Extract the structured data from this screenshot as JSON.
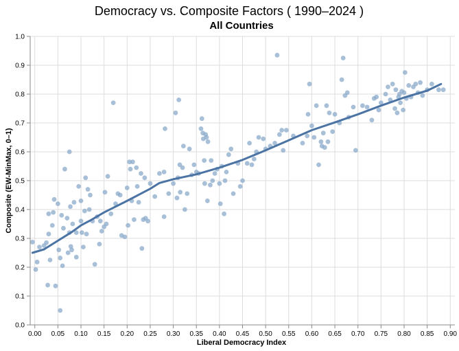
{
  "chart_data": {
    "type": "scatter",
    "title": "Democracy vs. Composite Factors ( 1990–2024 )",
    "subtitle": "All Countries",
    "xlabel": "Liberal Democracy Index",
    "ylabel": "Composite (EW-MinMax, 0–1)",
    "xlim": [
      -0.01,
      0.91
    ],
    "ylim": [
      0,
      1
    ],
    "x_ticks": [
      "0.00",
      "0.05",
      "0.10",
      "0.15",
      "0.20",
      "0.25",
      "0.30",
      "0.35",
      "0.40",
      "0.45",
      "0.50",
      "0.55",
      "0.60",
      "0.65",
      "0.70",
      "0.75",
      "0.80",
      "0.85",
      "0.90"
    ],
    "y_ticks": [
      "0.0",
      "0.1",
      "0.2",
      "0.3",
      "0.4",
      "0.5",
      "0.6",
      "0.7",
      "0.8",
      "0.9",
      "1.0"
    ],
    "grid": true,
    "colors": {
      "points": "#8ba9cb",
      "trend": "#4b73a3",
      "grid": "#dddddd",
      "axis": "#888888"
    },
    "points": [
      [
        -0.005,
        0.287
      ],
      [
        0.002,
        0.192
      ],
      [
        0.005,
        0.218
      ],
      [
        0.01,
        0.27
      ],
      [
        0.02,
        0.275
      ],
      [
        0.025,
        0.285
      ],
      [
        0.028,
        0.138
      ],
      [
        0.03,
        0.315
      ],
      [
        0.03,
        0.385
      ],
      [
        0.033,
        0.225
      ],
      [
        0.038,
        0.345
      ],
      [
        0.04,
        0.39
      ],
      [
        0.042,
        0.435
      ],
      [
        0.045,
        0.135
      ],
      [
        0.05,
        0.42
      ],
      [
        0.052,
        0.26
      ],
      [
        0.055,
        0.05
      ],
      [
        0.055,
        0.232
      ],
      [
        0.058,
        0.38
      ],
      [
        0.06,
        0.205
      ],
      [
        0.062,
        0.335
      ],
      [
        0.065,
        0.54
      ],
      [
        0.07,
        0.37
      ],
      [
        0.072,
        0.25
      ],
      [
        0.075,
        0.32
      ],
      [
        0.075,
        0.6
      ],
      [
        0.077,
        0.41
      ],
      [
        0.078,
        0.272
      ],
      [
        0.08,
        0.26
      ],
      [
        0.082,
        0.35
      ],
      [
        0.085,
        0.425
      ],
      [
        0.09,
        0.235
      ],
      [
        0.09,
        0.32
      ],
      [
        0.095,
        0.48
      ],
      [
        0.1,
        0.43
      ],
      [
        0.1,
        0.36
      ],
      [
        0.102,
        0.32
      ],
      [
        0.105,
        0.27
      ],
      [
        0.108,
        0.395
      ],
      [
        0.11,
        0.51
      ],
      [
        0.112,
        0.315
      ],
      [
        0.115,
        0.47
      ],
      [
        0.118,
        0.4
      ],
      [
        0.12,
        0.45
      ],
      [
        0.125,
        0.36
      ],
      [
        0.13,
        0.21
      ],
      [
        0.135,
        0.375
      ],
      [
        0.14,
        0.28
      ],
      [
        0.142,
        0.36
      ],
      [
        0.145,
        0.325
      ],
      [
        0.15,
        0.34
      ],
      [
        0.152,
        0.46
      ],
      [
        0.155,
        0.35
      ],
      [
        0.158,
        0.515
      ],
      [
        0.165,
        0.385
      ],
      [
        0.17,
        0.77
      ],
      [
        0.175,
        0.42
      ],
      [
        0.18,
        0.455
      ],
      [
        0.185,
        0.45
      ],
      [
        0.188,
        0.31
      ],
      [
        0.195,
        0.305
      ],
      [
        0.2,
        0.475
      ],
      [
        0.202,
        0.345
      ],
      [
        0.205,
        0.565
      ],
      [
        0.207,
        0.54
      ],
      [
        0.21,
        0.43
      ],
      [
        0.212,
        0.565
      ],
      [
        0.215,
        0.365
      ],
      [
        0.22,
        0.545
      ],
      [
        0.222,
        0.48
      ],
      [
        0.225,
        0.425
      ],
      [
        0.23,
        0.525
      ],
      [
        0.232,
        0.265
      ],
      [
        0.235,
        0.365
      ],
      [
        0.238,
        0.51
      ],
      [
        0.24,
        0.37
      ],
      [
        0.245,
        0.36
      ],
      [
        0.25,
        0.49
      ],
      [
        0.26,
        0.445
      ],
      [
        0.27,
        0.525
      ],
      [
        0.28,
        0.53
      ],
      [
        0.28,
        0.375
      ],
      [
        0.282,
        0.68
      ],
      [
        0.29,
        0.455
      ],
      [
        0.3,
        0.49
      ],
      [
        0.305,
        0.735
      ],
      [
        0.308,
        0.44
      ],
      [
        0.31,
        0.51
      ],
      [
        0.312,
        0.78
      ],
      [
        0.314,
        0.555
      ],
      [
        0.315,
        0.46
      ],
      [
        0.32,
        0.545
      ],
      [
        0.322,
        0.62
      ],
      [
        0.325,
        0.4
      ],
      [
        0.33,
        0.455
      ],
      [
        0.335,
        0.61
      ],
      [
        0.34,
        0.52
      ],
      [
        0.345,
        0.555
      ],
      [
        0.35,
        0.53
      ],
      [
        0.355,
        0.525
      ],
      [
        0.36,
        0.68
      ],
      [
        0.362,
        0.715
      ],
      [
        0.364,
        0.665
      ],
      [
        0.365,
        0.645
      ],
      [
        0.367,
        0.57
      ],
      [
        0.368,
        0.49
      ],
      [
        0.37,
        0.66
      ],
      [
        0.372,
        0.65
      ],
      [
        0.374,
        0.43
      ],
      [
        0.375,
        0.635
      ],
      [
        0.38,
        0.485
      ],
      [
        0.382,
        0.57
      ],
      [
        0.385,
        0.5
      ],
      [
        0.39,
        0.525
      ],
      [
        0.395,
        0.54
      ],
      [
        0.4,
        0.49
      ],
      [
        0.402,
        0.42
      ],
      [
        0.405,
        0.55
      ],
      [
        0.41,
        0.385
      ],
      [
        0.412,
        0.5
      ],
      [
        0.415,
        0.53
      ],
      [
        0.42,
        0.59
      ],
      [
        0.425,
        0.61
      ],
      [
        0.43,
        0.455
      ],
      [
        0.44,
        0.56
      ],
      [
        0.445,
        0.48
      ],
      [
        0.45,
        0.5
      ],
      [
        0.46,
        0.56
      ],
      [
        0.465,
        0.63
      ],
      [
        0.47,
        0.555
      ],
      [
        0.475,
        0.575
      ],
      [
        0.48,
        0.6
      ],
      [
        0.485,
        0.65
      ],
      [
        0.495,
        0.645
      ],
      [
        0.5,
        0.61
      ],
      [
        0.51,
        0.62
      ],
      [
        0.52,
        0.63
      ],
      [
        0.525,
        0.935
      ],
      [
        0.53,
        0.66
      ],
      [
        0.535,
        0.675
      ],
      [
        0.538,
        0.605
      ],
      [
        0.545,
        0.675
      ],
      [
        0.56,
        0.655
      ],
      [
        0.58,
        0.63
      ],
      [
        0.59,
        0.655
      ],
      [
        0.592,
        0.73
      ],
      [
        0.595,
        0.835
      ],
      [
        0.6,
        0.69
      ],
      [
        0.605,
        0.65
      ],
      [
        0.61,
        0.76
      ],
      [
        0.615,
        0.555
      ],
      [
        0.62,
        0.635
      ],
      [
        0.622,
        0.62
      ],
      [
        0.625,
        0.665
      ],
      [
        0.628,
        0.615
      ],
      [
        0.632,
        0.76
      ],
      [
        0.635,
        0.635
      ],
      [
        0.638,
        0.735
      ],
      [
        0.645,
        0.67
      ],
      [
        0.65,
        0.73
      ],
      [
        0.66,
        0.7
      ],
      [
        0.665,
        0.85
      ],
      [
        0.668,
        0.925
      ],
      [
        0.672,
        0.795
      ],
      [
        0.677,
        0.805
      ],
      [
        0.68,
        0.72
      ],
      [
        0.69,
        0.755
      ],
      [
        0.695,
        0.605
      ],
      [
        0.71,
        0.76
      ],
      [
        0.72,
        0.755
      ],
      [
        0.73,
        0.71
      ],
      [
        0.735,
        0.785
      ],
      [
        0.74,
        0.79
      ],
      [
        0.745,
        0.745
      ],
      [
        0.75,
        0.77
      ],
      [
        0.76,
        0.8
      ],
      [
        0.765,
        0.825
      ],
      [
        0.77,
        0.78
      ],
      [
        0.775,
        0.835
      ],
      [
        0.78,
        0.75
      ],
      [
        0.782,
        0.815
      ],
      [
        0.785,
        0.735
      ],
      [
        0.788,
        0.79
      ],
      [
        0.79,
        0.8
      ],
      [
        0.792,
        0.77
      ],
      [
        0.795,
        0.81
      ],
      [
        0.798,
        0.745
      ],
      [
        0.8,
        0.805
      ],
      [
        0.802,
        0.875
      ],
      [
        0.805,
        0.785
      ],
      [
        0.81,
        0.83
      ],
      [
        0.815,
        0.79
      ],
      [
        0.82,
        0.825
      ],
      [
        0.825,
        0.835
      ],
      [
        0.83,
        0.805
      ],
      [
        0.835,
        0.84
      ],
      [
        0.84,
        0.795
      ],
      [
        0.85,
        0.815
      ],
      [
        0.86,
        0.835
      ],
      [
        0.875,
        0.815
      ],
      [
        0.885,
        0.815
      ]
    ],
    "trend": [
      [
        -0.005,
        0.25
      ],
      [
        0.02,
        0.262
      ],
      [
        0.05,
        0.292
      ],
      [
        0.08,
        0.322
      ],
      [
        0.1,
        0.345
      ],
      [
        0.12,
        0.362
      ],
      [
        0.15,
        0.39
      ],
      [
        0.2,
        0.43
      ],
      [
        0.25,
        0.472
      ],
      [
        0.27,
        0.492
      ],
      [
        0.3,
        0.505
      ],
      [
        0.35,
        0.522
      ],
      [
        0.4,
        0.545
      ],
      [
        0.45,
        0.572
      ],
      [
        0.5,
        0.605
      ],
      [
        0.55,
        0.64
      ],
      [
        0.6,
        0.675
      ],
      [
        0.65,
        0.702
      ],
      [
        0.7,
        0.73
      ],
      [
        0.75,
        0.76
      ],
      [
        0.8,
        0.788
      ],
      [
        0.85,
        0.812
      ],
      [
        0.88,
        0.835
      ]
    ]
  }
}
